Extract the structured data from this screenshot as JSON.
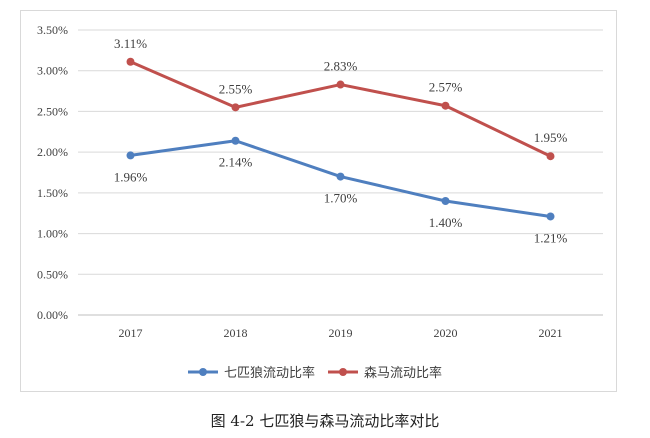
{
  "caption": "图 4-2 七匹狼与森马流动比率对比",
  "chart_data": {
    "type": "line",
    "title": "",
    "xlabel": "",
    "ylabel": "",
    "categories": [
      "2017",
      "2018",
      "2019",
      "2020",
      "2021"
    ],
    "ylim": [
      0,
      3.5
    ],
    "yticks": [
      "0.00%",
      "0.50%",
      "1.00%",
      "1.50%",
      "2.00%",
      "2.50%",
      "3.00%",
      "3.50%"
    ],
    "grid": true,
    "legend_position": "bottom",
    "series": [
      {
        "name": "七匹狼流动比率",
        "color": "#4f7fbf",
        "values": [
          1.96,
          2.14,
          1.7,
          1.4,
          1.21
        ],
        "labels": [
          "1.96%",
          "2.14%",
          "1.70%",
          "1.40%",
          "1.21%"
        ],
        "label_position": "below"
      },
      {
        "name": "森马流动比率",
        "color": "#c0504d",
        "values": [
          3.11,
          2.55,
          2.83,
          2.57,
          1.95
        ],
        "labels": [
          "3.11%",
          "2.55%",
          "2.83%",
          "2.57%",
          "1.95%"
        ],
        "label_position": "above"
      }
    ]
  }
}
